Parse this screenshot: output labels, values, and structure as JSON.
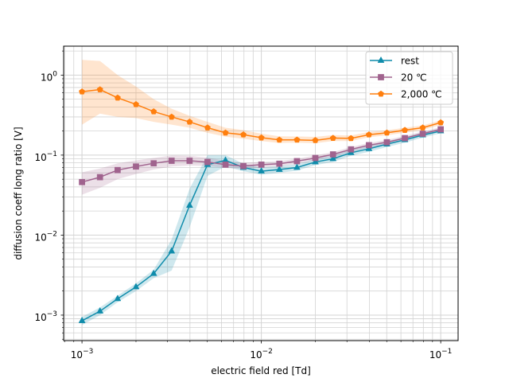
{
  "chart_data": {
    "type": "line",
    "title": "",
    "xlabel": "electric field red [Td]",
    "ylabel": "diffusion coeff long ratio [V]",
    "xscale": "log",
    "yscale": "log",
    "xlim": [
      0.00079,
      0.125
    ],
    "ylim": [
      0.00048,
      2.3
    ],
    "grid": true,
    "legend_position": "upper right",
    "x_tick_labels": [
      {
        "base": "10",
        "exp": "−3",
        "value": 0.001
      },
      {
        "base": "10",
        "exp": "−2",
        "value": 0.01
      },
      {
        "base": "10",
        "exp": "−1",
        "value": 0.1
      }
    ],
    "y_tick_labels": [
      {
        "base": "10",
        "exp": "−3",
        "value": 0.001
      },
      {
        "base": "10",
        "exp": "−2",
        "value": 0.01
      },
      {
        "base": "10",
        "exp": "−1",
        "value": 0.1
      },
      {
        "base": "10",
        "exp": "0",
        "value": 1
      }
    ],
    "x": [
      0.001,
      0.00126,
      0.00158,
      0.002,
      0.00251,
      0.00316,
      0.00398,
      0.00501,
      0.00631,
      0.00794,
      0.01,
      0.0126,
      0.0158,
      0.02,
      0.0251,
      0.0316,
      0.0398,
      0.0501,
      0.0631,
      0.0794,
      0.1
    ],
    "series": [
      {
        "name": "rest",
        "color": "#0f8cab",
        "marker": "triangle",
        "values": [
          0.00085,
          0.00112,
          0.0016,
          0.00225,
          0.0033,
          0.0063,
          0.0235,
          0.076,
          0.086,
          0.07,
          0.063,
          0.066,
          0.07,
          0.082,
          0.09,
          0.107,
          0.12,
          0.137,
          0.155,
          0.178,
          0.2
        ],
        "band_lower": [
          0.00075,
          0.001,
          0.00145,
          0.002,
          0.0029,
          0.0036,
          0.0125,
          0.055,
          0.072,
          0.063,
          0.057,
          0.06,
          0.064,
          0.075,
          0.082,
          0.098,
          0.11,
          0.126,
          0.143,
          0.165,
          0.188
        ],
        "band_upper": [
          0.00095,
          0.00125,
          0.00175,
          0.0025,
          0.0037,
          0.0088,
          0.038,
          0.1,
          0.1,
          0.078,
          0.07,
          0.073,
          0.077,
          0.09,
          0.099,
          0.117,
          0.131,
          0.149,
          0.168,
          0.192,
          0.214
        ]
      },
      {
        "name": "20 ℃",
        "color": "#a0638e",
        "marker": "square",
        "values": [
          0.046,
          0.053,
          0.065,
          0.072,
          0.079,
          0.085,
          0.085,
          0.082,
          0.076,
          0.073,
          0.076,
          0.078,
          0.084,
          0.092,
          0.102,
          0.118,
          0.133,
          0.145,
          0.163,
          0.185,
          0.21
        ],
        "band_lower": [
          0.032,
          0.039,
          0.05,
          0.058,
          0.066,
          0.072,
          0.074,
          0.073,
          0.069,
          0.067,
          0.07,
          0.072,
          0.078,
          0.086,
          0.095,
          0.11,
          0.124,
          0.135,
          0.152,
          0.173,
          0.197
        ],
        "band_upper": [
          0.061,
          0.068,
          0.079,
          0.086,
          0.092,
          0.099,
          0.098,
          0.093,
          0.085,
          0.08,
          0.082,
          0.084,
          0.09,
          0.099,
          0.109,
          0.126,
          0.142,
          0.155,
          0.174,
          0.197,
          0.223
        ]
      },
      {
        "name": "2,000 ℃",
        "color": "#ff7f0e",
        "marker": "pentagon",
        "values": [
          0.62,
          0.66,
          0.52,
          0.43,
          0.35,
          0.3,
          0.26,
          0.22,
          0.19,
          0.18,
          0.165,
          0.155,
          0.155,
          0.153,
          0.163,
          0.162,
          0.18,
          0.19,
          0.205,
          0.22,
          0.255
        ],
        "band_lower": [
          0.24,
          0.33,
          0.3,
          0.29,
          0.26,
          0.24,
          0.22,
          0.19,
          0.17,
          0.16,
          0.15,
          0.142,
          0.143,
          0.141,
          0.15,
          0.15,
          0.167,
          0.177,
          0.191,
          0.206,
          0.239
        ],
        "band_upper": [
          1.55,
          1.5,
          1.0,
          0.72,
          0.5,
          0.38,
          0.31,
          0.26,
          0.22,
          0.205,
          0.185,
          0.172,
          0.171,
          0.169,
          0.178,
          0.176,
          0.195,
          0.204,
          0.22,
          0.235,
          0.272
        ]
      }
    ]
  }
}
